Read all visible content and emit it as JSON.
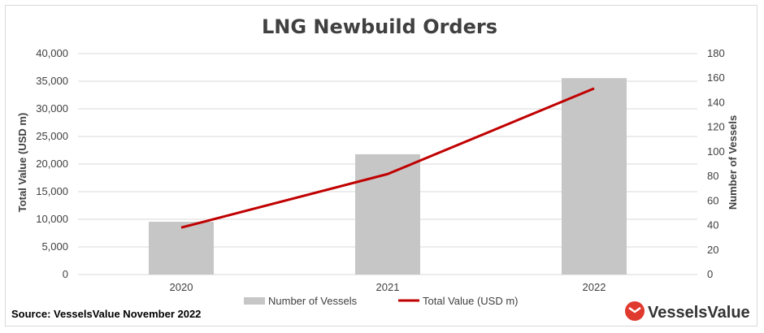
{
  "chart_data": {
    "type": "bar",
    "title": "LNG Newbuild Orders",
    "categories": [
      "2020",
      "2021",
      "2022"
    ],
    "series": [
      {
        "name": "Number of Vessels",
        "type": "bar",
        "axis": "right",
        "values": [
          43,
          98,
          160
        ],
        "color": "#c6c6c6"
      },
      {
        "name": "Total Value (USD m)",
        "type": "line",
        "axis": "left",
        "values": [
          8500,
          18200,
          33700
        ],
        "color": "#c00000"
      }
    ],
    "ylabel": "Total Value (USD m)",
    "ylabel_right": "Number of Vessels",
    "ylim": [
      0,
      40000
    ],
    "ylim_right": [
      0,
      180
    ],
    "yticks": [
      "0",
      "5,000",
      "10,000",
      "15,000",
      "20,000",
      "25,000",
      "30,000",
      "35,000",
      "40,000"
    ],
    "yticks_right": [
      "0",
      "20",
      "40",
      "60",
      "80",
      "100",
      "120",
      "140",
      "160",
      "180"
    ],
    "grid": true,
    "legend": "bottom"
  },
  "footer": {
    "source": "Source: VesselsValue November 2022",
    "brand": "VesselsValue",
    "brand_color": "#e03a2f"
  }
}
